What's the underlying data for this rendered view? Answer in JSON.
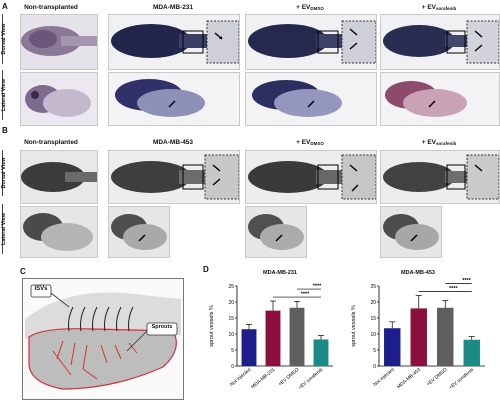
{
  "panel_labels": {
    "a": "A",
    "b": "B",
    "c": "C",
    "d": "D"
  },
  "panelA": {
    "row_labels": {
      "dorsal": "Dorsal View",
      "lateral": "Lateral View"
    },
    "columns": [
      {
        "title": "Non-transplanted"
      },
      {
        "title": "MDA-MB-231"
      },
      {
        "title": "+ EV",
        "sub": "DMSO"
      },
      {
        "title": "+ EV",
        "sub": "sorafenib"
      }
    ]
  },
  "panelB": {
    "row_labels": {
      "dorsal": "Dorsal View",
      "lateral": "Lateral View"
    },
    "columns": [
      {
        "title": "Non-transplanted"
      },
      {
        "title": "MDA-MB-453"
      },
      {
        "title": "+ EV",
        "sub": "DMSO"
      },
      {
        "title": "+ EV",
        "sub": "sorafenib"
      }
    ]
  },
  "panelC": {
    "label_isv": "ISVs",
    "label_sprouts": "Sprouts"
  },
  "colors": {
    "navy": "#1c1f8a",
    "maroon": "#8c0f3e",
    "gray": "#5f5f5f",
    "teal": "#1a8a85"
  },
  "chart_data": [
    {
      "type": "bar",
      "title": "MDA-MB-231",
      "ylabel": "sprout vessels %",
      "ylim": [
        0,
        25
      ],
      "yticks": [
        "0",
        "5",
        "10",
        "15",
        "20",
        "25"
      ],
      "categories": [
        "Not injected",
        "MDA-MB-231",
        "+EV DMSO",
        "+EV sorafenib"
      ],
      "values": [
        11.5,
        17.3,
        18.2,
        8.3
      ],
      "errors": [
        1.5,
        3.0,
        2.0,
        1.2
      ],
      "significance": [
        "****",
        "****"
      ]
    },
    {
      "type": "bar",
      "title": "MDA-MB-453",
      "ylabel": "sprout vessels %",
      "ylim": [
        0,
        25
      ],
      "yticks": [
        "0",
        "5",
        "10",
        "15",
        "20",
        "25"
      ],
      "categories": [
        "Not injected",
        "MDA-MB-453",
        "+EV DMSO",
        "+EV sorafenib"
      ],
      "values": [
        11.8,
        18.0,
        18.2,
        8.2
      ],
      "errors": [
        2.0,
        4.0,
        2.2,
        1.0
      ],
      "significance": [
        "****",
        "****"
      ]
    }
  ]
}
